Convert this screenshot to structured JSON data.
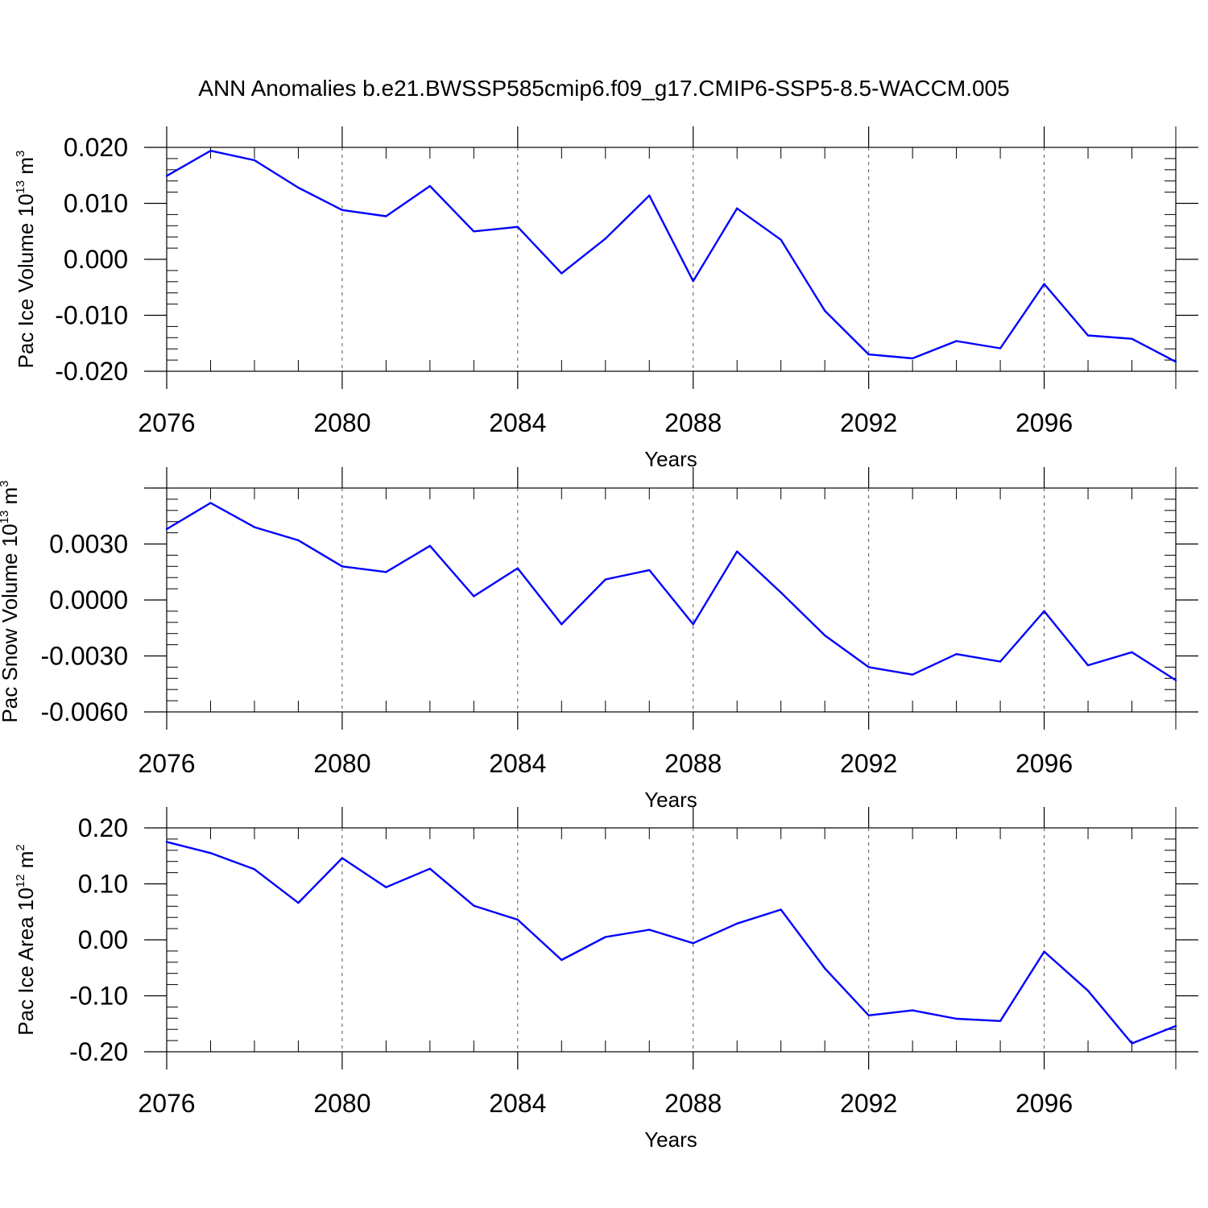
{
  "title": "ANN Anomalies b.e21.BWSSP585cmip6.f09_g17.CMIP6-SSP5-8.5-WACCM.005",
  "line_color": "#0000ff",
  "chart_data": [
    {
      "type": "line",
      "id": "ice-volume",
      "ylabel": {
        "prefix": "Pac Ice Volume 10",
        "exp1": "13",
        "mid": " m",
        "exp2": "3"
      },
      "xlabel": "Years",
      "x": [
        2076,
        2077,
        2078,
        2079,
        2080,
        2081,
        2082,
        2083,
        2084,
        2085,
        2086,
        2087,
        2088,
        2089,
        2090,
        2091,
        2092,
        2093,
        2094,
        2095,
        2096,
        2097,
        2098,
        2099
      ],
      "values": [
        0.0149,
        0.0194,
        0.0177,
        0.0128,
        0.0088,
        0.0077,
        0.0131,
        0.005,
        0.0058,
        -0.0025,
        0.0037,
        0.0114,
        -0.0039,
        0.0091,
        0.0035,
        -0.0092,
        -0.017,
        -0.0177,
        -0.0146,
        -0.0159,
        -0.0044,
        -0.0136,
        -0.0142,
        -0.0183
      ],
      "xlim": [
        2076,
        2099
      ],
      "ylim": [
        -0.02,
        0.02
      ],
      "xticks": [
        "2076",
        "2080",
        "2084",
        "2088",
        "2092",
        "2096"
      ],
      "yticks": [
        "0.020",
        "0.010",
        "0.000",
        "-0.010",
        "-0.020"
      ],
      "ytick_values": [
        0.02,
        0.01,
        0.0,
        -0.01,
        -0.02
      ],
      "ymax_label": true
    },
    {
      "type": "line",
      "id": "snow-volume",
      "ylabel": {
        "prefix": "Pac Snow Volume 10",
        "exp1": "13",
        "mid": " m",
        "exp2": "3"
      },
      "xlabel": "Years",
      "x": [
        2076,
        2077,
        2078,
        2079,
        2080,
        2081,
        2082,
        2083,
        2084,
        2085,
        2086,
        2087,
        2088,
        2089,
        2090,
        2091,
        2092,
        2093,
        2094,
        2095,
        2096,
        2097,
        2098,
        2099
      ],
      "values": [
        0.0038,
        0.0052,
        0.0039,
        0.0032,
        0.0018,
        0.0015,
        0.0029,
        0.0002,
        0.0017,
        -0.0013,
        0.0011,
        0.0016,
        -0.0013,
        0.0026,
        0.0004,
        -0.0019,
        -0.0036,
        -0.004,
        -0.0029,
        -0.0033,
        -0.0006,
        -0.0035,
        -0.0028,
        -0.0043
      ],
      "xlim": [
        2076,
        2099
      ],
      "ylim": [
        -0.006,
        0.006
      ],
      "xticks": [
        "2076",
        "2080",
        "2084",
        "2088",
        "2092",
        "2096"
      ],
      "yticks": [
        "0.0030",
        "0.0000",
        "-0.0030",
        "-0.0060"
      ],
      "ytick_values": [
        0.003,
        0.0,
        -0.003,
        -0.006
      ]
    },
    {
      "type": "line",
      "id": "ice-area",
      "ylabel": {
        "prefix": "Pac Ice Area 10",
        "exp1": "12",
        "mid": " m",
        "exp2": "2"
      },
      "xlabel": "Years",
      "x": [
        2076,
        2077,
        2078,
        2079,
        2080,
        2081,
        2082,
        2083,
        2084,
        2085,
        2086,
        2087,
        2088,
        2089,
        2090,
        2091,
        2092,
        2093,
        2094,
        2095,
        2096,
        2097,
        2098,
        2099
      ],
      "values": [
        0.175,
        0.155,
        0.126,
        0.066,
        0.146,
        0.094,
        0.127,
        0.061,
        0.036,
        -0.036,
        0.005,
        0.018,
        -0.006,
        0.029,
        0.054,
        -0.051,
        -0.135,
        -0.126,
        -0.141,
        -0.145,
        -0.021,
        -0.091,
        -0.185,
        -0.154
      ],
      "xlim": [
        2076,
        2099
      ],
      "ylim": [
        -0.2,
        0.2
      ],
      "xticks": [
        "2076",
        "2080",
        "2084",
        "2088",
        "2092",
        "2096"
      ],
      "yticks": [
        "0.20",
        "0.10",
        "0.00",
        "-0.10",
        "-0.20"
      ],
      "ytick_values": [
        0.2,
        0.1,
        0.0,
        -0.1,
        -0.2
      ]
    }
  ]
}
